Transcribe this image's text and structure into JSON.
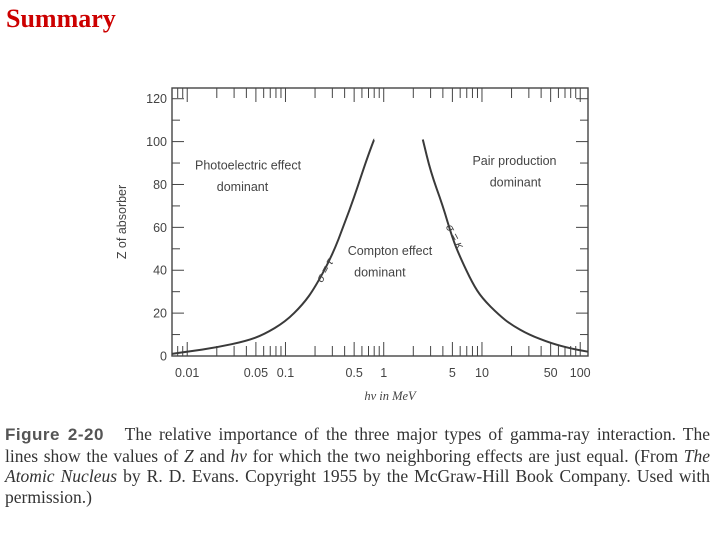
{
  "slide": {
    "title": "Summary"
  },
  "chart_data": {
    "type": "line",
    "xlabel": "hν in MeV",
    "ylabel": "Z of absorber",
    "xscale": "log",
    "xlim": [
      0.007,
      120
    ],
    "ylim": [
      0,
      125
    ],
    "x_ticks": [
      0.01,
      0.05,
      0.1,
      0.5,
      1,
      5,
      10,
      50,
      100
    ],
    "x_tick_labels": [
      "0.01",
      "0.05",
      "0.1",
      "0.5",
      "1",
      "5",
      "10",
      "50",
      "100"
    ],
    "y_ticks": [
      0,
      20,
      40,
      60,
      80,
      100,
      120
    ],
    "y_tick_labels": [
      "0",
      "20",
      "40",
      "60",
      "80",
      "100",
      "120"
    ],
    "series": [
      {
        "name": "σ = τ",
        "x": [
          0.007,
          0.01,
          0.02,
          0.04,
          0.06,
          0.1,
          0.15,
          0.2,
          0.3,
          0.4,
          0.5,
          0.6,
          0.7,
          0.8
        ],
        "y": [
          1,
          2,
          4,
          7,
          10,
          16,
          24,
          32,
          47,
          62,
          74,
          85,
          94,
          101
        ]
      },
      {
        "name": "σ = κ",
        "x": [
          2.5,
          3,
          4,
          5,
          6,
          8,
          10,
          15,
          20,
          30,
          50,
          80,
          120
        ],
        "y": [
          101,
          86,
          70,
          55,
          46,
          34,
          27,
          19,
          14.5,
          10,
          6,
          3.5,
          2
        ]
      }
    ],
    "annotations": [
      {
        "text": "Photoelectric  effect",
        "x": 0.012,
        "y": 87
      },
      {
        "text": "dominant",
        "x": 0.02,
        "y": 77
      },
      {
        "text": "Pair  production",
        "x": 8,
        "y": 89
      },
      {
        "text": "dominant",
        "x": 12,
        "y": 79
      },
      {
        "text": "Compton  effect",
        "x": 0.43,
        "y": 47
      },
      {
        "text": "dominant",
        "x": 0.5,
        "y": 37
      },
      {
        "text": "σ = τ",
        "x": 0.27,
        "y": 39
      },
      {
        "text": "σ = κ",
        "x": 4.9,
        "y": 55
      }
    ],
    "grid": false
  },
  "caption": {
    "figure_label": "Figure 2-20",
    "text_1": "The relative importance of the three major types of gamma-ray interaction. The lines show the values of ",
    "z_symbol": "Z",
    "text_2": " and ",
    "hv_symbol": "hν",
    "text_3": " for which the two neighboring effects are just equal. (From ",
    "book_title": "The Atomic Nucleus",
    "text_4": " by R. D. Evans. Copyright 1955 by the McGraw-Hill Book Company. Used with permission.)"
  }
}
